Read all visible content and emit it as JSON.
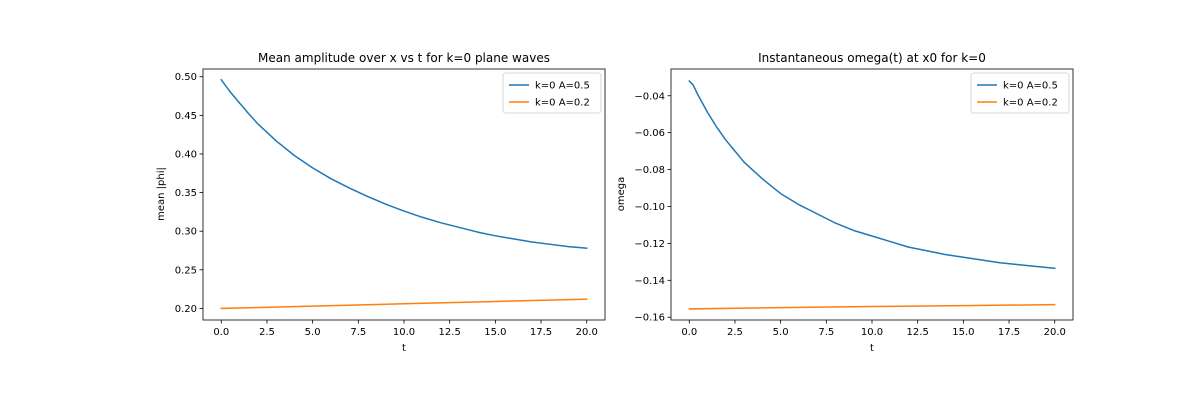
{
  "chart_data": [
    {
      "type": "line",
      "title": "Mean amplitude over x vs t for k=0 plane waves",
      "xlabel": "t",
      "ylabel": "mean |phi|",
      "xlim": [
        -1.0,
        21.0
      ],
      "ylim": [
        0.185,
        0.51
      ],
      "xticks": [
        0.0,
        2.5,
        5.0,
        7.5,
        10.0,
        12.5,
        15.0,
        17.5,
        20.0
      ],
      "xtick_labels": [
        "0.0",
        "2.5",
        "5.0",
        "7.5",
        "10.0",
        "12.5",
        "15.0",
        "17.5",
        "20.0"
      ],
      "yticks": [
        0.2,
        0.25,
        0.3,
        0.35,
        0.4,
        0.45,
        0.5
      ],
      "ytick_labels": [
        "0.20",
        "0.25",
        "0.30",
        "0.35",
        "0.40",
        "0.45",
        "0.50"
      ],
      "grid": false,
      "legend": "top-right",
      "series": [
        {
          "name": "k=0 A=0.5",
          "color": "#1f77b4",
          "x": [
            0,
            0.5,
            1,
            1.5,
            2,
            2.5,
            3,
            4,
            5,
            6,
            7,
            8,
            9,
            10,
            11,
            12,
            13,
            14,
            15,
            16,
            17,
            18,
            19,
            20
          ],
          "y": [
            0.496,
            0.48,
            0.466,
            0.452,
            0.439,
            0.428,
            0.417,
            0.398,
            0.382,
            0.368,
            0.356,
            0.345,
            0.335,
            0.326,
            0.318,
            0.311,
            0.305,
            0.299,
            0.294,
            0.29,
            0.286,
            0.283,
            0.28,
            0.278
          ]
        },
        {
          "name": "k=0 A=0.2",
          "color": "#ff7f0e",
          "x": [
            0,
            5,
            10,
            15,
            20
          ],
          "y": [
            0.2,
            0.203,
            0.206,
            0.209,
            0.212
          ]
        }
      ]
    },
    {
      "type": "line",
      "title": "Instantaneous omega(t) at x0 for k=0",
      "xlabel": "t",
      "ylabel": "omega",
      "xlim": [
        -1.0,
        21.0
      ],
      "ylim": [
        -0.1615,
        -0.0255
      ],
      "xticks": [
        0.0,
        2.5,
        5.0,
        7.5,
        10.0,
        12.5,
        15.0,
        17.5,
        20.0
      ],
      "xtick_labels": [
        "0.0",
        "2.5",
        "5.0",
        "7.5",
        "10.0",
        "12.5",
        "15.0",
        "17.5",
        "20.0"
      ],
      "yticks": [
        -0.16,
        -0.14,
        -0.12,
        -0.1,
        -0.08,
        -0.06,
        -0.04
      ],
      "ytick_labels": [
        "−0.16",
        "−0.14",
        "−0.12",
        "−0.10",
        "−0.08",
        "−0.06",
        "−0.04"
      ],
      "grid": false,
      "legend": "top-right",
      "series": [
        {
          "name": "k=0 A=0.5",
          "color": "#1f77b4",
          "x": [
            0,
            0.2,
            0.5,
            1,
            1.5,
            2,
            2.5,
            3,
            4,
            5,
            6,
            7,
            8,
            9,
            10,
            11,
            12,
            13,
            14,
            15,
            16,
            17,
            18,
            19,
            20
          ],
          "y": [
            -0.032,
            -0.034,
            -0.04,
            -0.049,
            -0.057,
            -0.064,
            -0.07,
            -0.076,
            -0.085,
            -0.093,
            -0.099,
            -0.104,
            -0.109,
            -0.113,
            -0.116,
            -0.119,
            -0.122,
            -0.124,
            -0.126,
            -0.1275,
            -0.129,
            -0.1305,
            -0.1315,
            -0.1325,
            -0.1335
          ]
        },
        {
          "name": "k=0 A=0.2",
          "color": "#ff7f0e",
          "x": [
            0,
            5,
            10,
            15,
            20
          ],
          "y": [
            -0.1555,
            -0.1548,
            -0.1542,
            -0.1537,
            -0.1532
          ]
        }
      ]
    }
  ]
}
